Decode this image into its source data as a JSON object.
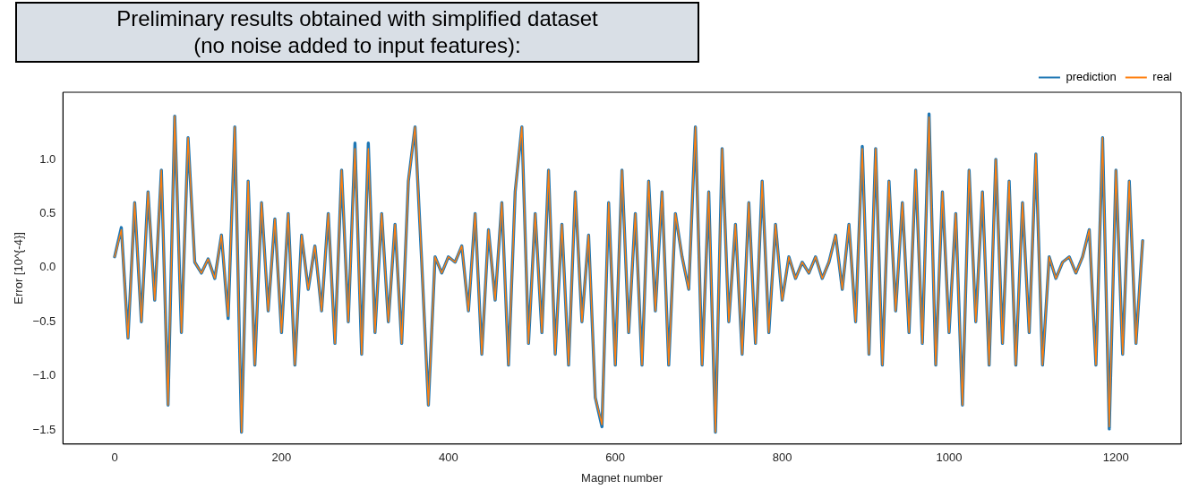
{
  "chart_data": {
    "type": "line",
    "title": "Preliminary results obtained with simplified dataset",
    "subtitle": "(no noise added to input features):",
    "xlabel": "Magnet number",
    "ylabel": "Error [10^{-4}]",
    "x": [
      0,
      8,
      16,
      24,
      32,
      40,
      48,
      56,
      64,
      72,
      80,
      88,
      96,
      104,
      112,
      120,
      128,
      136,
      144,
      152,
      160,
      168,
      176,
      184,
      192,
      200,
      208,
      216,
      224,
      232,
      240,
      248,
      256,
      264,
      272,
      280,
      288,
      296,
      304,
      312,
      320,
      328,
      336,
      344,
      352,
      360,
      368,
      376,
      384,
      392,
      400,
      408,
      416,
      424,
      432,
      440,
      448,
      456,
      464,
      472,
      480,
      488,
      496,
      504,
      512,
      520,
      528,
      536,
      544,
      552,
      560,
      568,
      576,
      584,
      592,
      600,
      608,
      616,
      624,
      632,
      640,
      648,
      656,
      664,
      672,
      680,
      688,
      696,
      704,
      712,
      720,
      728,
      736,
      744,
      752,
      760,
      768,
      776,
      784,
      792,
      800,
      808,
      816,
      824,
      832,
      840,
      848,
      856,
      864,
      872,
      880,
      888,
      896,
      904,
      912,
      920,
      928,
      936,
      944,
      952,
      960,
      968,
      976,
      984,
      992,
      1000,
      1008,
      1016,
      1024,
      1032,
      1040,
      1048,
      1056,
      1064,
      1072,
      1080,
      1088,
      1096,
      1104,
      1112,
      1120,
      1128,
      1136,
      1144,
      1152,
      1160,
      1168,
      1176,
      1184,
      1192,
      1200,
      1208,
      1216,
      1224,
      1232
    ],
    "series": [
      {
        "name": "prediction",
        "color": "#1f77b4",
        "values": [
          0.1,
          0.37,
          -0.65,
          0.6,
          -0.5,
          0.7,
          -0.3,
          0.9,
          -1.27,
          1.4,
          -0.6,
          1.2,
          0.05,
          -0.05,
          0.08,
          -0.1,
          0.3,
          -0.47,
          1.3,
          -1.52,
          0.8,
          -0.9,
          0.6,
          -0.4,
          0.45,
          -0.6,
          0.5,
          -0.9,
          0.3,
          -0.2,
          0.2,
          -0.4,
          0.5,
          -0.7,
          0.9,
          -0.5,
          1.15,
          -0.8,
          1.15,
          -0.6,
          0.5,
          -0.5,
          0.4,
          -0.7,
          0.8,
          1.3,
          0.05,
          -1.27,
          0.1,
          -0.05,
          0.1,
          0.05,
          0.2,
          -0.4,
          0.5,
          -0.8,
          0.35,
          -0.3,
          0.6,
          -0.9,
          0.7,
          1.3,
          -0.7,
          0.5,
          -0.6,
          0.9,
          -0.8,
          0.4,
          -0.9,
          0.7,
          -0.5,
          0.3,
          -1.2,
          -1.47,
          0.6,
          -0.9,
          0.9,
          -0.6,
          0.5,
          -0.9,
          0.8,
          -0.4,
          0.7,
          -0.9,
          0.5,
          0.1,
          -0.2,
          1.3,
          -0.9,
          0.7,
          -1.52,
          1.1,
          -0.5,
          0.4,
          -0.8,
          0.6,
          -0.7,
          0.8,
          -0.6,
          0.4,
          -0.3,
          0.1,
          -0.1,
          0.05,
          -0.05,
          0.1,
          -0.1,
          0.05,
          0.3,
          -0.2,
          0.4,
          -0.5,
          1.12,
          -0.8,
          1.1,
          -0.9,
          0.8,
          -0.4,
          0.6,
          -0.6,
          0.9,
          -0.7,
          1.42,
          -0.9,
          0.7,
          -0.6,
          0.5,
          -1.27,
          0.9,
          -0.5,
          0.7,
          -0.9,
          1.0,
          -0.7,
          0.8,
          -0.9,
          0.6,
          -0.6,
          1.05,
          -0.9,
          0.1,
          -0.1,
          0.05,
          0.1,
          -0.05,
          0.1,
          0.35,
          -0.9,
          1.2,
          -1.49,
          0.9,
          -0.8,
          0.8,
          -0.7,
          0.25
        ]
      },
      {
        "name": "real",
        "color": "#ff7f0e",
        "values": [
          0.1,
          0.35,
          -0.65,
          0.6,
          -0.5,
          0.7,
          -0.3,
          0.9,
          -1.27,
          1.4,
          -0.6,
          1.2,
          0.05,
          -0.05,
          0.08,
          -0.1,
          0.3,
          -0.45,
          1.3,
          -1.52,
          0.8,
          -0.9,
          0.6,
          -0.4,
          0.45,
          -0.6,
          0.5,
          -0.9,
          0.3,
          -0.2,
          0.2,
          -0.4,
          0.5,
          -0.7,
          0.9,
          -0.5,
          1.1,
          -0.8,
          1.1,
          -0.6,
          0.5,
          -0.5,
          0.4,
          -0.7,
          0.8,
          1.3,
          0.05,
          -1.27,
          0.1,
          -0.05,
          0.1,
          0.05,
          0.2,
          -0.4,
          0.5,
          -0.8,
          0.35,
          -0.3,
          0.6,
          -0.9,
          0.7,
          1.3,
          -0.7,
          0.5,
          -0.6,
          0.9,
          -0.8,
          0.4,
          -0.9,
          0.7,
          -0.5,
          0.3,
          -1.2,
          -1.45,
          0.6,
          -0.9,
          0.9,
          -0.6,
          0.5,
          -0.9,
          0.8,
          -0.4,
          0.7,
          -0.9,
          0.5,
          0.1,
          -0.2,
          1.3,
          -0.9,
          0.7,
          -1.52,
          1.1,
          -0.5,
          0.4,
          -0.8,
          0.6,
          -0.7,
          0.8,
          -0.6,
          0.4,
          -0.3,
          0.1,
          -0.1,
          0.05,
          -0.05,
          0.1,
          -0.1,
          0.05,
          0.3,
          -0.2,
          0.4,
          -0.5,
          1.1,
          -0.8,
          1.1,
          -0.9,
          0.8,
          -0.4,
          0.6,
          -0.6,
          0.9,
          -0.7,
          1.39,
          -0.9,
          0.7,
          -0.6,
          0.5,
          -1.27,
          0.9,
          -0.5,
          0.7,
          -0.9,
          1.0,
          -0.7,
          0.8,
          -0.9,
          0.6,
          -0.6,
          1.05,
          -0.9,
          0.1,
          -0.1,
          0.05,
          0.1,
          -0.05,
          0.1,
          0.35,
          -0.9,
          1.2,
          -1.47,
          0.9,
          -0.8,
          0.8,
          -0.7,
          0.25
        ]
      }
    ],
    "xlim": [
      -62,
      1278
    ],
    "ylim": [
      -1.63,
      1.62
    ],
    "xticks": [
      0,
      200,
      400,
      600,
      800,
      1000,
      1200
    ],
    "yticks": [
      {
        "value": -1.5,
        "label": "−1.5"
      },
      {
        "value": -1,
        "label": "−1.0"
      },
      {
        "value": -0.5,
        "label": "−0.5"
      },
      {
        "value": 0,
        "label": "0.0"
      },
      {
        "value": 0.5,
        "label": "0.5"
      },
      {
        "value": 1,
        "label": "1.0"
      }
    ],
    "legend": "top right",
    "marker": "none",
    "line_style": "solid"
  }
}
